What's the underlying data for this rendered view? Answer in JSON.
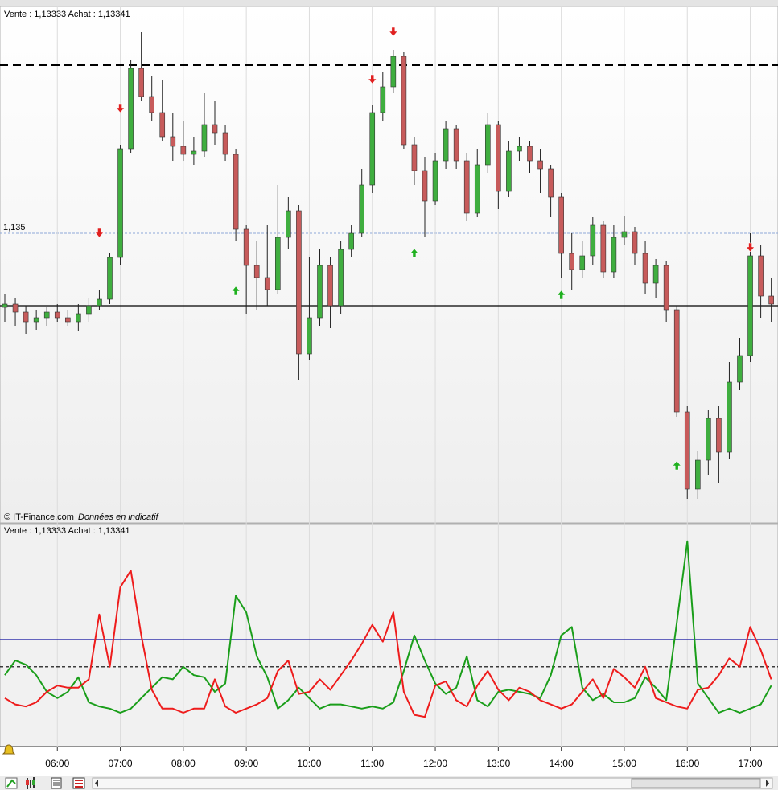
{
  "chart_data": [
    {
      "type": "candlestick",
      "title": "Vente : 1,13333 Achat : 1,13341",
      "source": "© IT-Finance.com",
      "note": "Données en indicatif",
      "xlim": [
        0,
        73
      ],
      "ylim": [
        1.1278,
        1.1406
      ],
      "yticks": [
        {
          "value": 1.135,
          "label": "1,135"
        }
      ],
      "up_color": "#3fae3f",
      "down_color": "#c75b5b",
      "open": [
        1.13316,
        1.13324,
        1.13304,
        1.1328,
        1.1329,
        1.13304,
        1.1329,
        1.1328,
        1.133,
        1.1332,
        1.13336,
        1.1344,
        1.1371,
        1.1391,
        1.1384,
        1.138,
        1.1374,
        1.13716,
        1.13696,
        1.13704,
        1.1377,
        1.1375,
        1.13696,
        1.1351,
        1.1342,
        1.1339,
        1.1336,
        1.1349,
        1.13556,
        1.132,
        1.1329,
        1.1342,
        1.1332,
        1.1346,
        1.135,
        1.1362,
        1.138,
        1.13864,
        1.1394,
        1.1372,
        1.13656,
        1.1358,
        1.1368,
        1.1376,
        1.1368,
        1.1355,
        1.1367,
        1.1377,
        1.13604,
        1.13704,
        1.13716,
        1.1368,
        1.1366,
        1.1359,
        1.1345,
        1.1341,
        1.13444,
        1.1352,
        1.13404,
        1.1349,
        1.13504,
        1.1345,
        1.13376,
        1.1342,
        1.1331,
        1.13056,
        1.12864,
        1.12936,
        1.1304,
        1.12956,
        1.1313,
        1.13196,
        1.13444,
        1.13344
      ],
      "high": [
        1.1335,
        1.1334,
        1.1332,
        1.1331,
        1.13316,
        1.13324,
        1.1331,
        1.13324,
        1.1334,
        1.1336,
        1.1345,
        1.1372,
        1.1393,
        1.14,
        1.1389,
        1.1388,
        1.138,
        1.1378,
        1.1374,
        1.1385,
        1.1383,
        1.1377,
        1.1371,
        1.1352,
        1.1348,
        1.1352,
        1.1362,
        1.1359,
        1.1357,
        1.1344,
        1.1346,
        1.1344,
        1.1348,
        1.1352,
        1.1366,
        1.1382,
        1.139,
        1.13956,
        1.1395,
        1.1374,
        1.1369,
        1.137,
        1.1378,
        1.1377,
        1.137,
        1.1371,
        1.138,
        1.1378,
        1.1373,
        1.1374,
        1.1373,
        1.1371,
        1.1367,
        1.136,
        1.135,
        1.1348,
        1.1354,
        1.1353,
        1.1352,
        1.13544,
        1.13516,
        1.1348,
        1.13436,
        1.1343,
        1.1332,
        1.1307,
        1.1296,
        1.1306,
        1.1307,
        1.1318,
        1.1324,
        1.135,
        1.1347,
        1.1339
      ],
      "low": [
        1.1328,
        1.1327,
        1.1325,
        1.1326,
        1.1327,
        1.1328,
        1.1327,
        1.13256,
        1.1328,
        1.1331,
        1.13324,
        1.1342,
        1.137,
        1.1383,
        1.1378,
        1.1373,
        1.1368,
        1.1368,
        1.1367,
        1.1369,
        1.1372,
        1.1368,
        1.1348,
        1.133,
        1.1331,
        1.1332,
        1.1335,
        1.1346,
        1.13136,
        1.13184,
        1.1327,
        1.13264,
        1.133,
        1.1344,
        1.1349,
        1.136,
        1.1378,
        1.1385,
        1.1371,
        1.1362,
        1.1349,
        1.1357,
        1.1366,
        1.1366,
        1.1353,
        1.1354,
        1.1365,
        1.1356,
        1.1359,
        1.1368,
        1.1365,
        1.136,
        1.1354,
        1.1339,
        1.1336,
        1.1339,
        1.1342,
        1.1339,
        1.1339,
        1.1347,
        1.1342,
        1.1335,
        1.1334,
        1.1328,
        1.13044,
        1.1284,
        1.1284,
        1.129,
        1.1288,
        1.1294,
        1.1311,
        1.1318,
        1.1329,
        1.1328
      ],
      "close": [
        1.13324,
        1.13304,
        1.1328,
        1.1329,
        1.13304,
        1.1329,
        1.1328,
        1.133,
        1.1332,
        1.13336,
        1.1344,
        1.1371,
        1.1391,
        1.1384,
        1.138,
        1.1374,
        1.13716,
        1.13696,
        1.13704,
        1.1377,
        1.1375,
        1.13696,
        1.1351,
        1.1342,
        1.1339,
        1.1336,
        1.1349,
        1.13556,
        1.132,
        1.1329,
        1.1342,
        1.1332,
        1.1346,
        1.135,
        1.1362,
        1.138,
        1.13864,
        1.1394,
        1.1372,
        1.13656,
        1.1358,
        1.1368,
        1.1376,
        1.1368,
        1.1355,
        1.1367,
        1.1377,
        1.13604,
        1.13704,
        1.13716,
        1.1368,
        1.1366,
        1.1359,
        1.1345,
        1.1341,
        1.13444,
        1.1352,
        1.13404,
        1.1349,
        1.13504,
        1.1345,
        1.13376,
        1.1342,
        1.1331,
        1.13056,
        1.12864,
        1.12936,
        1.1304,
        1.12956,
        1.1313,
        1.13196,
        1.13444,
        1.13344,
        1.13324
      ],
      "hlines": [
        {
          "value": 1.1332,
          "color": "#000000",
          "style": "solid"
        },
        {
          "value": 1.13918,
          "color": "#000000",
          "style": "dashed"
        }
      ],
      "sell_signals": [
        {
          "x": 9,
          "y": 1.135
        },
        {
          "x": 11,
          "y": 1.1381
        },
        {
          "x": 35,
          "y": 1.13882
        },
        {
          "x": 37,
          "y": 1.14
        },
        {
          "x": 71,
          "y": 1.13464
        }
      ],
      "buy_signals": [
        {
          "x": 22,
          "y": 1.13358
        },
        {
          "x": 39,
          "y": 1.13452
        },
        {
          "x": 53,
          "y": 1.13348
        },
        {
          "x": 64,
          "y": 1.12924
        }
      ],
      "sell_color": "#e02020",
      "buy_color": "#20b020"
    },
    {
      "type": "line",
      "title": "Vente : 1,13333 Achat : 1,13341",
      "xlim": [
        0,
        73
      ],
      "ylim": [
        0,
        100
      ],
      "xticks": [
        {
          "value": 5,
          "label": "06:00"
        },
        {
          "value": 11,
          "label": "07:00"
        },
        {
          "value": 17,
          "label": "08:00"
        },
        {
          "value": 23,
          "label": "09:00"
        },
        {
          "value": 29,
          "label": "10:00"
        },
        {
          "value": 35,
          "label": "11:00"
        },
        {
          "value": 41,
          "label": "12:00"
        },
        {
          "value": 47,
          "label": "13:00"
        },
        {
          "value": 53,
          "label": "14:00"
        },
        {
          "value": 59,
          "label": "15:00"
        },
        {
          "value": 65,
          "label": "16:00"
        },
        {
          "value": 71,
          "label": "17:00"
        }
      ],
      "hlines": [
        {
          "value": 50,
          "color": "#1010a0",
          "style": "solid"
        },
        {
          "value": 37,
          "color": "#000000",
          "style": "dashed"
        }
      ],
      "series": [
        {
          "color": "#1a9e1a",
          "values": [
            33,
            40,
            38,
            33,
            25,
            22,
            25,
            32,
            20,
            18,
            17,
            15,
            17,
            22,
            27,
            32,
            31,
            37,
            33,
            32,
            25,
            29,
            71,
            63,
            42,
            32,
            17,
            21,
            27,
            22,
            17,
            19,
            19,
            18,
            17,
            18,
            17,
            20,
            35,
            52,
            40,
            29,
            24,
            27,
            42,
            21,
            18,
            25,
            26,
            25,
            24,
            22,
            33,
            52,
            56,
            27,
            21,
            24,
            20,
            20,
            22,
            32,
            27,
            21,
            58,
            97,
            29,
            22,
            15,
            17,
            15,
            17,
            19,
            28
          ]
        },
        {
          "color": "#ee1c1c",
          "values": [
            22,
            19,
            18,
            20,
            25,
            28,
            27,
            27,
            31,
            62,
            37,
            75,
            83,
            52,
            26,
            17,
            17,
            15,
            17,
            17,
            31,
            18,
            15,
            17,
            19,
            22,
            35,
            40,
            24,
            25,
            31,
            26,
            33,
            40,
            48,
            57,
            49,
            63,
            25,
            14,
            13,
            28,
            30,
            21,
            18,
            28,
            35,
            26,
            21,
            27,
            25,
            21,
            19,
            17,
            19,
            25,
            31,
            22,
            36,
            32,
            27,
            37,
            22,
            20,
            18,
            17,
            26,
            27,
            33,
            41,
            37,
            56,
            45,
            31
          ]
        }
      ]
    }
  ]
}
